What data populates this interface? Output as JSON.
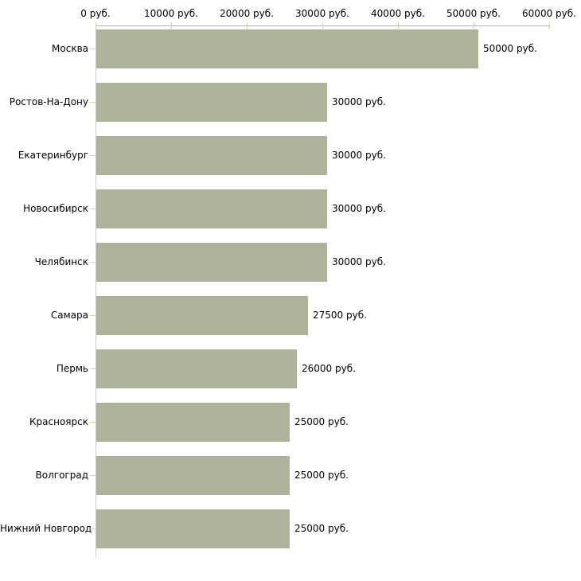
{
  "chart_data": {
    "type": "bar",
    "orientation": "horizontal",
    "categories": [
      "Москва",
      "Ростов-На-Дону",
      "Екатеринбург",
      "Новосибирск",
      "Челябинск",
      "Самара",
      "Пермь",
      "Красноярск",
      "Волгоград",
      "Нижний Новгород"
    ],
    "values": [
      50000,
      30000,
      30000,
      30000,
      30000,
      27500,
      26000,
      25000,
      25000,
      25000
    ],
    "value_labels": [
      "50000 руб.",
      "30000 руб.",
      "30000 руб.",
      "30000 руб.",
      "30000 руб.",
      "27500 руб.",
      "26000 руб.",
      "25000 руб.",
      "25000 руб.",
      "25000 руб."
    ],
    "x_tick_labels": [
      "0 руб.",
      "10000 руб.",
      "20000 руб.",
      "30000 руб.",
      "40000 руб.",
      "50000 руб.",
      "60000 руб."
    ],
    "x_tick_values": [
      0,
      10000,
      20000,
      30000,
      40000,
      50000,
      60000
    ],
    "xlim": [
      0,
      60000
    ],
    "unit": "руб.",
    "grid": false,
    "legend": "none",
    "colors": {
      "bar": "#acb399",
      "x_axis_line": "#b0b0b0",
      "y_axis_line": "#cccccc",
      "tick_mark": "#d6d3a6",
      "text": "#000000",
      "background": "#ffffff"
    }
  }
}
